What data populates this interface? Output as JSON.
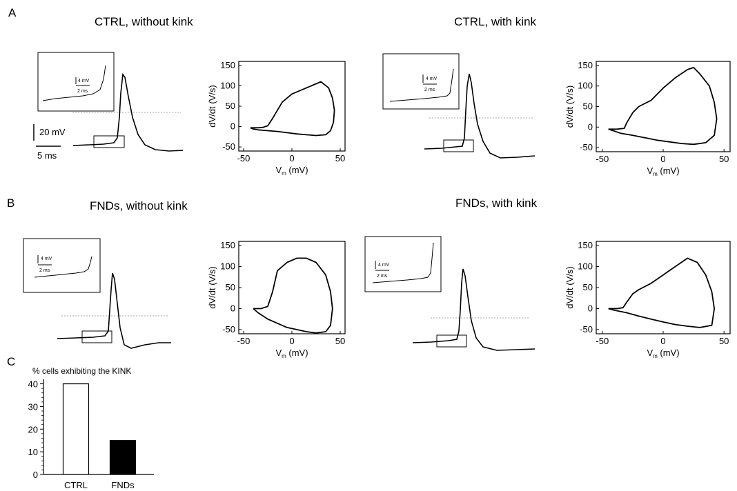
{
  "panels": {
    "A": "A",
    "B": "B",
    "C": "C"
  },
  "titles": {
    "ctrl_no_kink": "CTRL, without kink",
    "ctrl_kink": "CTRL, with kink",
    "fnd_no_kink": "FNDs, without kink",
    "fnd_kink": "FNDs, with kink"
  },
  "scalebars": {
    "main_voltage": "20 mV",
    "main_time": "5 ms",
    "inset_voltage": "4 mV",
    "inset_time": "2 ms"
  },
  "phase_axes": {
    "xlabel_prefix": "V",
    "xlabel_sub": "m",
    "xlabel_suffix": " (mV)",
    "ylabel": "dV/dt (V/s)",
    "ylabel_a1": "dV/dt  (V/s)",
    "xticks": [
      "-50",
      "0",
      "50"
    ],
    "yticks": [
      "150",
      "100",
      "50",
      "0",
      "-50"
    ]
  },
  "bar": {
    "ylabel": "%   cells exhibiting the KINK",
    "yticks": [
      "40",
      "30",
      "20",
      "10",
      "0"
    ]
  },
  "chart_data": [
    {
      "type": "line",
      "title": "CTRL, without kink",
      "xlabel": "Vm (mV)",
      "ylabel": "dV/dt  (V/s)",
      "xlim": [
        -55,
        55
      ],
      "ylim": [
        -60,
        160
      ],
      "x": [
        -43,
        -35,
        -30,
        -25,
        -20,
        -10,
        0,
        10,
        20,
        30,
        38,
        42,
        44,
        43,
        40,
        35,
        25,
        15,
        5,
        -5,
        -15,
        -25,
        -35,
        -40,
        -43
      ],
      "y": [
        -3,
        -3,
        -2,
        2,
        20,
        60,
        80,
        90,
        100,
        110,
        95,
        70,
        40,
        10,
        -10,
        -20,
        -22,
        -20,
        -18,
        -15,
        -12,
        -10,
        -8,
        -6,
        -3
      ]
    },
    {
      "type": "line",
      "title": "CTRL, with kink",
      "xlabel": "Vm (mV)",
      "ylabel": "dV/dt (V/s)",
      "xlim": [
        -55,
        55
      ],
      "ylim": [
        -60,
        160
      ],
      "x": [
        -45,
        -38,
        -32,
        -30,
        -25,
        -20,
        -10,
        0,
        10,
        20,
        25,
        30,
        38,
        42,
        44,
        42,
        35,
        25,
        15,
        5,
        -5,
        -15,
        -25,
        -35,
        -40,
        -45
      ],
      "y": [
        -5,
        -5,
        -3,
        10,
        35,
        50,
        65,
        95,
        120,
        140,
        145,
        130,
        100,
        60,
        20,
        -20,
        -38,
        -42,
        -40,
        -36,
        -32,
        -26,
        -20,
        -15,
        -10,
        -5
      ]
    },
    {
      "type": "line",
      "title": "FNDs, without kink",
      "xlabel": "Vm (mV)",
      "ylabel": "dV/dt (V/s)",
      "xlim": [
        -55,
        55
      ],
      "ylim": [
        -60,
        160
      ],
      "x": [
        -40,
        -32,
        -25,
        -20,
        -15,
        -5,
        5,
        15,
        25,
        35,
        40,
        42,
        40,
        35,
        25,
        15,
        5,
        -5,
        -15,
        -25,
        -35,
        -40
      ],
      "y": [
        0,
        0,
        5,
        40,
        90,
        110,
        120,
        120,
        110,
        80,
        40,
        0,
        -40,
        -55,
        -58,
        -55,
        -50,
        -45,
        -35,
        -25,
        -10,
        0
      ]
    },
    {
      "type": "line",
      "title": "FNDs, with kink",
      "xlabel": "Vm (mV)",
      "ylabel": "dV/dt (V/s)",
      "xlim": [
        -55,
        55
      ],
      "ylim": [
        -60,
        160
      ],
      "x": [
        -45,
        -38,
        -33,
        -30,
        -25,
        -20,
        -10,
        0,
        10,
        20,
        28,
        35,
        40,
        42,
        40,
        30,
        20,
        10,
        0,
        -10,
        -20,
        -30,
        -40,
        -45
      ],
      "y": [
        0,
        0,
        2,
        15,
        35,
        45,
        60,
        80,
        100,
        120,
        110,
        80,
        40,
        0,
        -40,
        -45,
        -42,
        -38,
        -32,
        -25,
        -18,
        -10,
        -4,
        0
      ]
    },
    {
      "type": "bar",
      "title": "",
      "ylabel": "%   cells exhibiting the KINK",
      "categories": [
        "CTRL",
        "FNDs"
      ],
      "values": [
        40,
        15
      ],
      "colors": [
        "#ffffff",
        "#000000"
      ],
      "ylim": [
        0,
        42
      ]
    }
  ]
}
